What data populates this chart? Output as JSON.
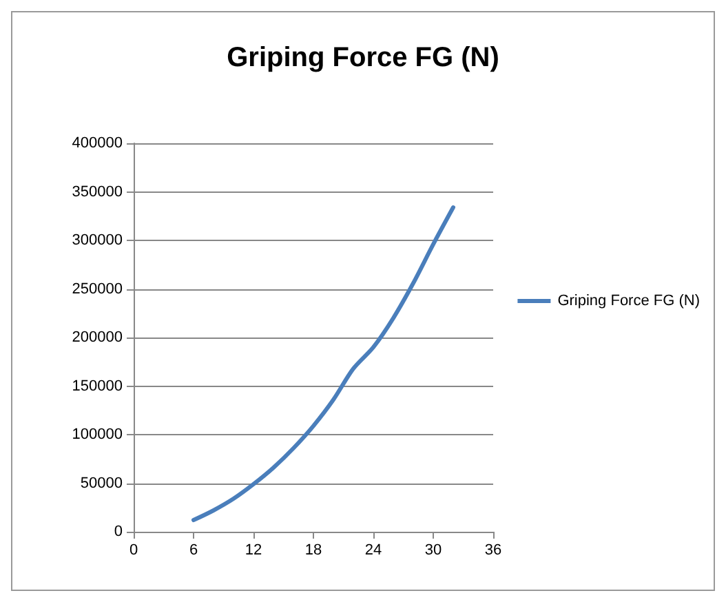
{
  "chart_data": {
    "type": "line",
    "title": "Griping Force FG (N)",
    "x": [
      6,
      8,
      10,
      12,
      14,
      16,
      18,
      20,
      22,
      24,
      26,
      28,
      30,
      32
    ],
    "series": [
      {
        "name": "Griping Force FG (N)",
        "color": "#4a7ebb",
        "values": [
          12000,
          22000,
          34000,
          49000,
          66000,
          86000,
          109000,
          136000,
          168000,
          190000,
          220000,
          256000,
          296000,
          334000
        ]
      }
    ],
    "xlim": [
      0,
      36
    ],
    "xticks": [
      0,
      6,
      12,
      18,
      24,
      30,
      36
    ],
    "ylim": [
      0,
      400000
    ],
    "yticks": [
      0,
      50000,
      100000,
      150000,
      200000,
      250000,
      300000,
      350000,
      400000
    ],
    "grid": "y",
    "legend": "right",
    "marker": "none",
    "line_style": "solid"
  }
}
